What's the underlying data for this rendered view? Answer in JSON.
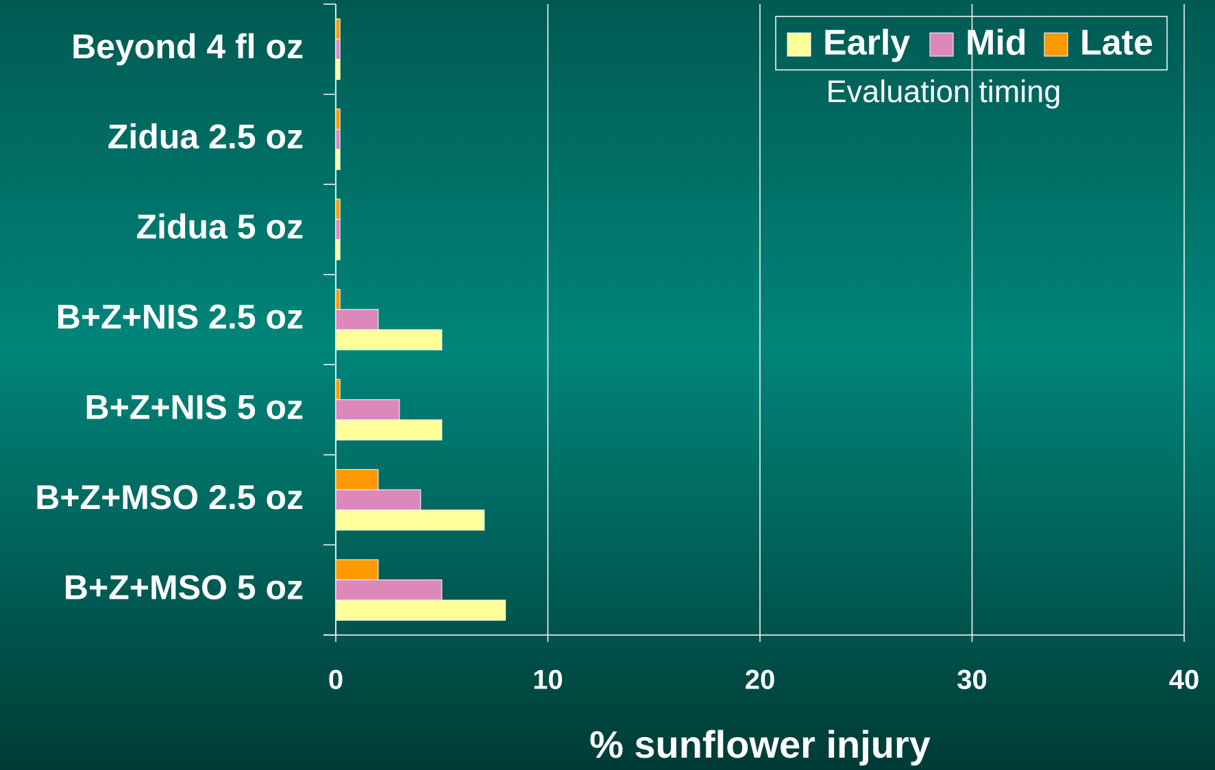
{
  "chart_data": {
    "type": "bar",
    "orientation": "horizontal",
    "categories": [
      "Beyond 4 fl oz",
      "Zidua 2.5 oz",
      "Zidua 5 oz",
      "B+Z+NIS 2.5 oz",
      "B+Z+NIS 5 oz",
      "B+Z+MSO 2.5 oz",
      "B+Z+MSO 5 oz"
    ],
    "series": [
      {
        "name": "Early",
        "color": "#ffff99",
        "values": [
          0.2,
          0.2,
          0.2,
          5,
          5,
          7,
          8
        ]
      },
      {
        "name": "Mid",
        "color": "#dd88bb",
        "values": [
          0.2,
          0.2,
          0.2,
          2,
          3,
          4,
          5
        ]
      },
      {
        "name": "Late",
        "color": "#ff9900",
        "values": [
          0.2,
          0.2,
          0.2,
          0.2,
          0.2,
          2,
          2
        ]
      }
    ],
    "x_label": "% sunflower injury",
    "legend_title": "Evaluation timing",
    "legend_position": "upper right",
    "xlim": [
      0,
      40
    ],
    "xticks": [
      0,
      10,
      20,
      30,
      40
    ],
    "grid": true
  }
}
